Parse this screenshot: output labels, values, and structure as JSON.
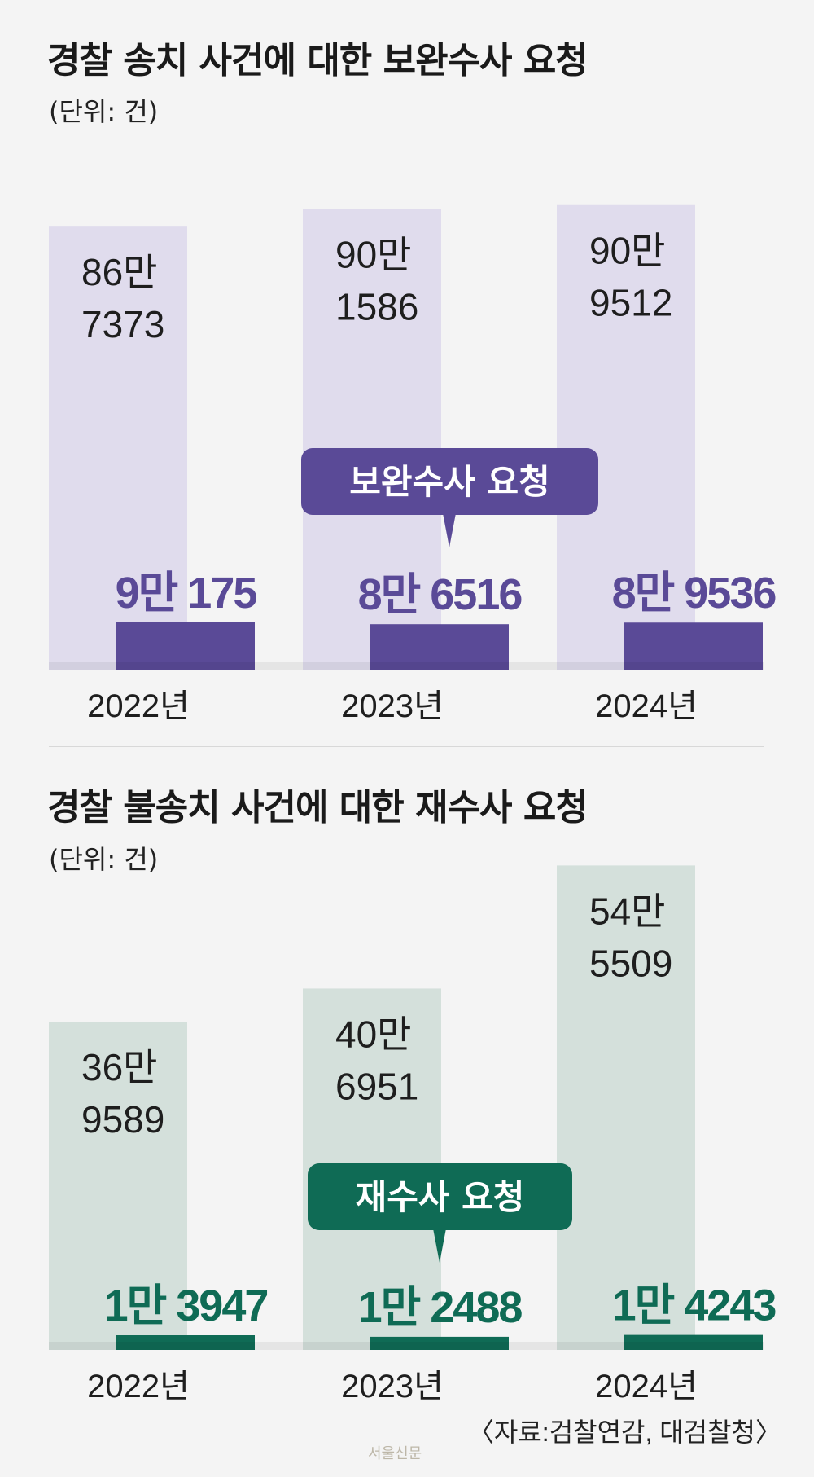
{
  "chart_data": [
    {
      "type": "bar",
      "title": "경찰 송치 사건에 대한 보완수사 요청",
      "unit": "(단위: 건)",
      "categories": [
        "2022년",
        "2023년",
        "2024년"
      ],
      "series": [
        {
          "name": "",
          "values": [
            867373,
            901586,
            909512
          ],
          "labels": [
            [
              "86만",
              "7373"
            ],
            [
              "90만",
              "1586"
            ],
            [
              "90만",
              "9512"
            ]
          ],
          "color": "#e0dced"
        },
        {
          "name": "보완수사 요청",
          "values": [
            90175,
            86516,
            89536
          ],
          "labels": [
            "9만 175",
            "8만 6516",
            "8만 9536"
          ],
          "color": "#5a4a97"
        }
      ],
      "callout": "보완수사 요청",
      "callout_color": "#5a4a97"
    },
    {
      "type": "bar",
      "title": "경찰 불송치 사건에 대한 재수사 요청",
      "unit": "(단위: 건)",
      "categories": [
        "2022년",
        "2023년",
        "2024년"
      ],
      "series": [
        {
          "name": "",
          "values": [
            369589,
            406951,
            545509
          ],
          "labels": [
            [
              "36만",
              "9589"
            ],
            [
              "40만",
              "6951"
            ],
            [
              "54만",
              "5509"
            ]
          ],
          "color": "#d4e0db"
        },
        {
          "name": "재수사 요청",
          "values": [
            13947,
            12488,
            14243
          ],
          "labels": [
            "1만 3947",
            "1만 2488",
            "1만 4243"
          ],
          "color": "#0f6b55"
        }
      ],
      "callout": "재수사 요청",
      "callout_color": "#0f6b55"
    }
  ],
  "source": "〈자료:검찰연감, 대검찰청〉",
  "watermark": "서울신문"
}
